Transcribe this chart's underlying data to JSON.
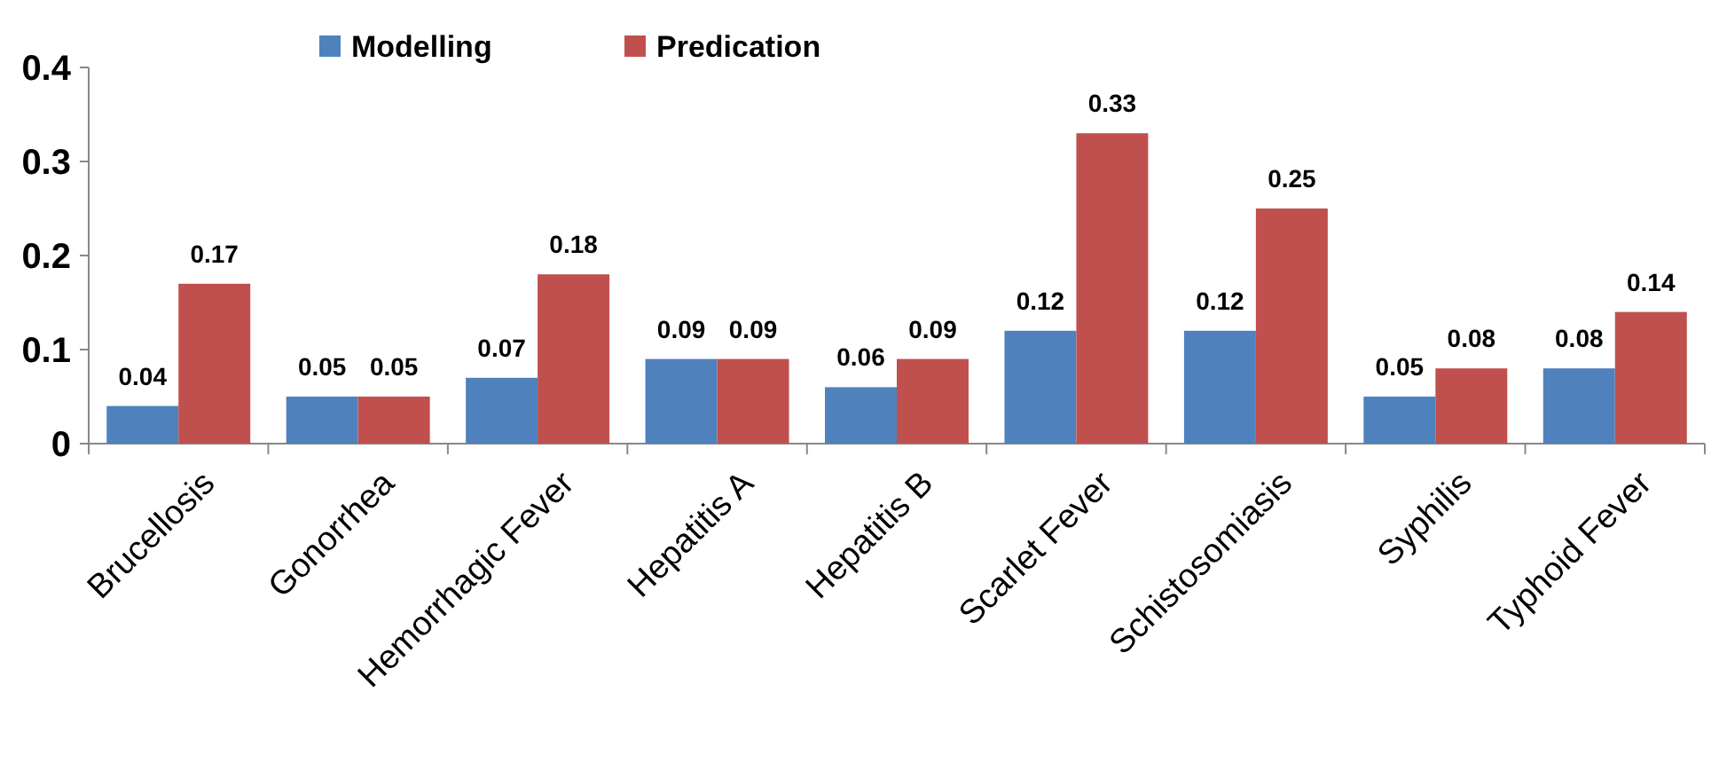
{
  "chart_data": {
    "type": "bar",
    "categories": [
      "Brucellosis",
      "Gonorrhea",
      "Hemorrhagic Fever",
      "Hepatitis A",
      "Hepatitis B",
      "Scarlet Fever",
      "Schistosomiasis",
      "Syphilis",
      "Typhoid Fever"
    ],
    "series": [
      {
        "name": "Modelling",
        "color": "#4f81bd",
        "values": [
          0.04,
          0.05,
          0.07,
          0.09,
          0.06,
          0.12,
          0.12,
          0.05,
          0.08
        ]
      },
      {
        "name": "Predication",
        "color": "#c0504d",
        "values": [
          0.17,
          0.05,
          0.18,
          0.09,
          0.09,
          0.33,
          0.25,
          0.08,
          0.14
        ]
      }
    ],
    "ylim": [
      0,
      0.4
    ],
    "yticks": [
      {
        "value": 0,
        "label": "0"
      },
      0.1,
      0.2,
      0.3,
      0.4
    ],
    "data_labels": true,
    "legend": "top",
    "grid": false
  }
}
